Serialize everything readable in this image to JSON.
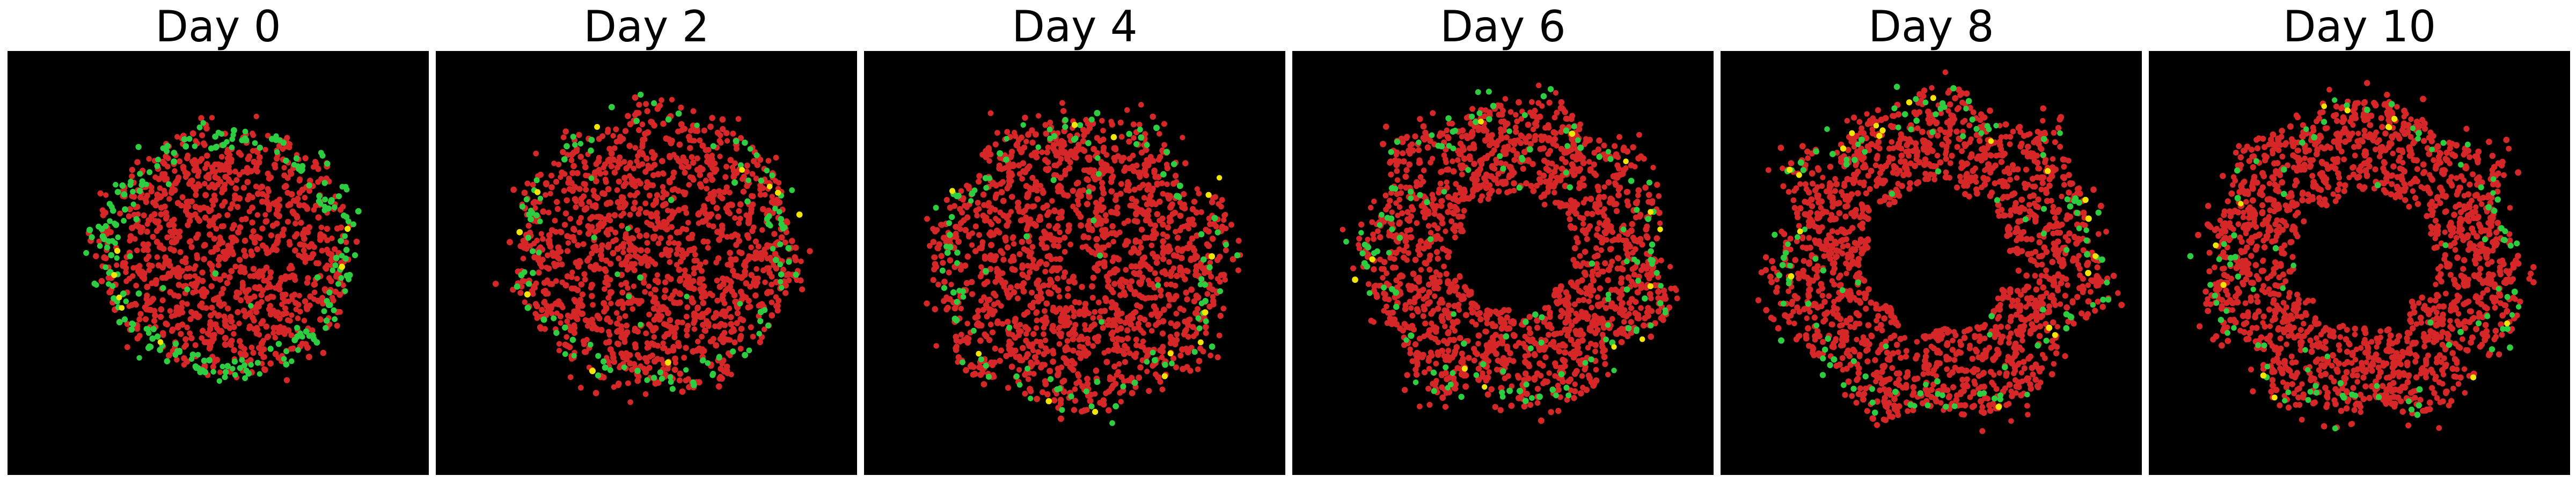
{
  "figure": {
    "panels": [
      {
        "title": "Day 0"
      },
      {
        "title": "Day 2"
      },
      {
        "title": "Day 4"
      },
      {
        "title": "Day 6"
      },
      {
        "title": "Day 8"
      },
      {
        "title": "Day 10"
      }
    ]
  },
  "colors": {
    "background": "#000000",
    "red_cells": "#d62728",
    "green_cells": "#2ecc40",
    "yellow_cells": "#f2e600"
  }
}
